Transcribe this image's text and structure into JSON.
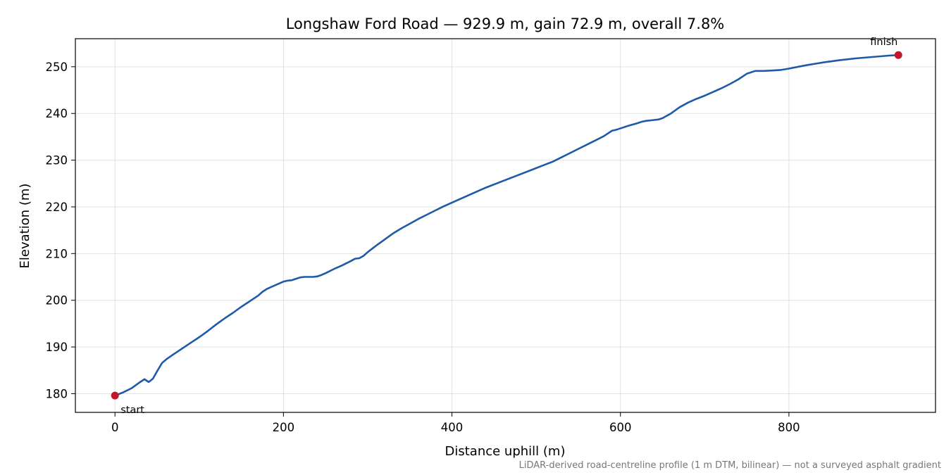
{
  "chart_data": {
    "type": "line",
    "title": "Longshaw Ford Road — 929.9 m, gain 72.9 m, overall 7.8%",
    "xlabel": "Distance uphill (m)",
    "ylabel": "Elevation (m)",
    "xlim": [
      -47,
      974
    ],
    "ylim": [
      176,
      256
    ],
    "xticks": [
      0,
      200,
      400,
      600,
      800
    ],
    "yticks": [
      180,
      190,
      200,
      210,
      220,
      230,
      240,
      250
    ],
    "grid": true,
    "series": [
      {
        "color": "#1f5aa8",
        "x": [
          0,
          10,
          20,
          30,
          35,
          40,
          45,
          50,
          56,
          62,
          70,
          80,
          90,
          100,
          110,
          120,
          130,
          140,
          150,
          160,
          170,
          175,
          180,
          185,
          190,
          195,
          200,
          205,
          210,
          215,
          220,
          225,
          230,
          235,
          240,
          245,
          250,
          260,
          270,
          280,
          285,
          290,
          295,
          300,
          310,
          320,
          330,
          340,
          350,
          360,
          370,
          380,
          390,
          400,
          420,
          440,
          460,
          480,
          500,
          520,
          530,
          540,
          550,
          560,
          570,
          580,
          590,
          595,
          600,
          610,
          620,
          625,
          630,
          640,
          645,
          650,
          660,
          670,
          680,
          690,
          700,
          710,
          720,
          730,
          740,
          750,
          760,
          765,
          770,
          780,
          790,
          800,
          820,
          840,
          860,
          880,
          900,
          920,
          929.9
        ],
        "values": [
          179.6,
          180.3,
          181.2,
          182.5,
          183.1,
          182.5,
          183.2,
          184.8,
          186.6,
          187.5,
          188.5,
          189.7,
          190.9,
          192.1,
          193.4,
          194.8,
          196.1,
          197.3,
          198.6,
          199.8,
          201.0,
          201.8,
          202.4,
          202.8,
          203.2,
          203.6,
          204.0,
          204.2,
          204.3,
          204.6,
          204.9,
          205.0,
          205.0,
          205.0,
          205.1,
          205.4,
          205.8,
          206.7,
          207.5,
          208.4,
          208.9,
          209.0,
          209.5,
          210.3,
          211.7,
          213.0,
          214.3,
          215.4,
          216.4,
          217.4,
          218.3,
          219.2,
          220.1,
          220.9,
          222.5,
          224.1,
          225.5,
          226.9,
          228.3,
          229.7,
          230.6,
          231.5,
          232.4,
          233.3,
          234.2,
          235.1,
          236.3,
          236.5,
          236.8,
          237.4,
          237.9,
          238.2,
          238.4,
          238.6,
          238.7,
          239.0,
          240.0,
          241.3,
          242.3,
          243.1,
          243.8,
          244.6,
          245.4,
          246.3,
          247.3,
          248.5,
          249.1,
          249.1,
          249.1,
          249.2,
          249.3,
          249.6,
          250.3,
          250.9,
          251.4,
          251.8,
          252.1,
          252.4,
          252.5
        ]
      }
    ],
    "markers": [
      {
        "label": "start",
        "x": 0,
        "y": 179.6,
        "color": "#c0182a"
      },
      {
        "label": "finish",
        "x": 929.9,
        "y": 252.5,
        "color": "#c0182a"
      }
    ],
    "footnote": "LiDAR-derived road-centreline profile (1 m DTM, bilinear) — not a surveyed asphalt gradient"
  }
}
